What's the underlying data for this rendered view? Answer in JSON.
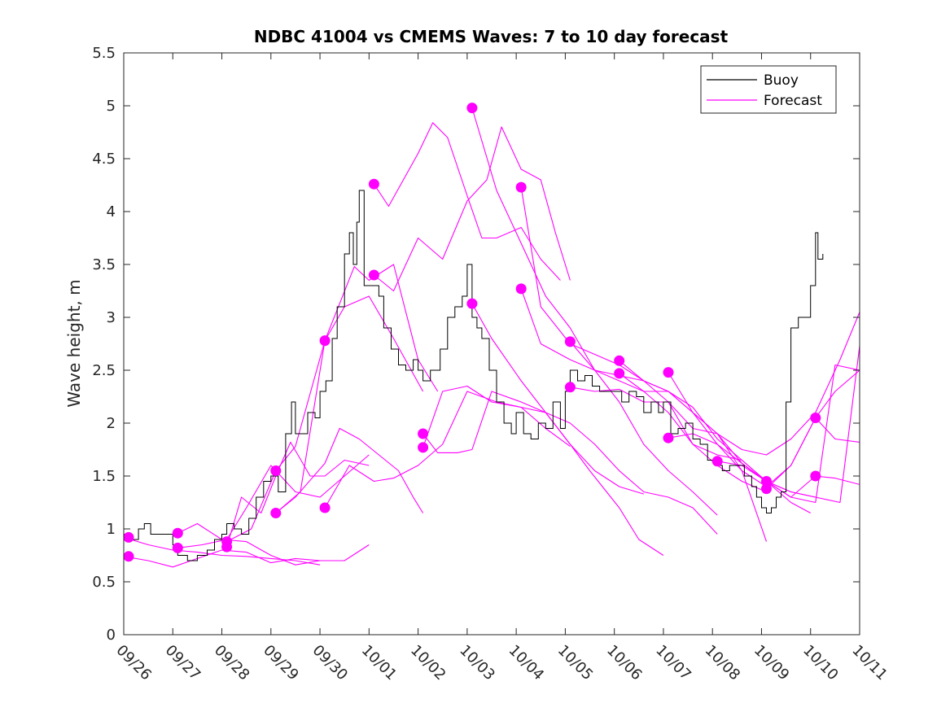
{
  "chart_data": {
    "type": "line",
    "title": "NDBC 41004 vs CMEMS Waves: 7 to 10 day forecast",
    "xlabel": "",
    "ylabel": "Wave height, m",
    "xlim": [
      0,
      15
    ],
    "ylim": [
      0,
      5.5
    ],
    "x_ticks": [
      0,
      1,
      2,
      3,
      4,
      5,
      6,
      7,
      8,
      9,
      10,
      11,
      12,
      13,
      14,
      15
    ],
    "x_tick_labels": [
      "09/26",
      "09/27",
      "09/28",
      "09/29",
      "09/30",
      "10/01",
      "10/02",
      "10/03",
      "10/04",
      "10/05",
      "10/06",
      "10/07",
      "10/08",
      "10/09",
      "10/10",
      "10/11"
    ],
    "y_ticks": [
      0,
      0.5,
      1,
      1.5,
      2,
      2.5,
      3,
      3.5,
      4,
      4.5,
      5,
      5.5
    ],
    "y_tick_labels": [
      "0",
      "0.5",
      "1",
      "1.5",
      "2",
      "2.5",
      "3",
      "3.5",
      "4",
      "4.5",
      "5",
      "5.5"
    ],
    "legend": {
      "position": "top-right",
      "entries": [
        "Buoy",
        "Forecast"
      ]
    },
    "colors": {
      "buoy": "#000000",
      "forecast": "#ff00ff",
      "axes": "#262626"
    },
    "buoy": {
      "name": "Buoy",
      "x": [
        0,
        0.15,
        0.3,
        0.42,
        0.55,
        0.75,
        0.9,
        1.0,
        1.1,
        1.3,
        1.5,
        1.7,
        1.85,
        2.0,
        2.1,
        2.25,
        2.4,
        2.55,
        2.7,
        2.85,
        3.0,
        3.15,
        3.3,
        3.42,
        3.5,
        3.6,
        3.75,
        3.9,
        4.0,
        4.12,
        4.25,
        4.35,
        4.5,
        4.6,
        4.68,
        4.75,
        4.8,
        4.9,
        5.0,
        5.1,
        5.2,
        5.3,
        5.45,
        5.6,
        5.75,
        5.9,
        6.0,
        6.1,
        6.25,
        6.45,
        6.6,
        6.75,
        6.9,
        7.0,
        7.1,
        7.2,
        7.3,
        7.45,
        7.6,
        7.75,
        7.9,
        8.0,
        8.15,
        8.3,
        8.45,
        8.6,
        8.75,
        8.9,
        9.0,
        9.1,
        9.25,
        9.4,
        9.55,
        9.7,
        9.85,
        10.0,
        10.15,
        10.3,
        10.45,
        10.6,
        10.75,
        10.9,
        11.0,
        11.15,
        11.3,
        11.45,
        11.6,
        11.75,
        11.9,
        12.05,
        12.2,
        12.35,
        12.5,
        12.65,
        12.8,
        12.9,
        13.0,
        13.1,
        13.2,
        13.3,
        13.4,
        13.5,
        13.6,
        13.75,
        13.9,
        14.0,
        14.1,
        14.15,
        14.25
      ],
      "y": [
        0.95,
        0.9,
        1.0,
        1.05,
        0.95,
        0.95,
        0.95,
        0.85,
        0.75,
        0.7,
        0.75,
        0.8,
        0.9,
        0.95,
        1.05,
        1.0,
        0.95,
        1.1,
        1.3,
        1.45,
        1.5,
        1.35,
        1.9,
        2.2,
        1.9,
        1.9,
        2.1,
        2.05,
        2.3,
        2.4,
        2.8,
        3.1,
        3.6,
        3.8,
        3.5,
        3.9,
        4.2,
        3.3,
        3.3,
        3.3,
        3.2,
        2.9,
        2.7,
        2.55,
        2.5,
        2.6,
        2.5,
        2.4,
        2.5,
        2.7,
        3.0,
        3.1,
        3.2,
        3.5,
        3.0,
        2.9,
        2.8,
        2.5,
        2.2,
        2.0,
        1.9,
        2.1,
        1.9,
        1.85,
        2.0,
        1.95,
        2.2,
        1.95,
        2.3,
        2.5,
        2.4,
        2.45,
        2.35,
        2.3,
        2.3,
        2.3,
        2.2,
        2.3,
        2.25,
        2.1,
        2.2,
        2.1,
        2.2,
        1.9,
        1.95,
        2.0,
        1.85,
        1.8,
        1.65,
        1.6,
        1.55,
        1.6,
        1.6,
        1.5,
        1.4,
        1.3,
        1.2,
        1.15,
        1.2,
        1.3,
        1.35,
        2.2,
        2.9,
        3.0,
        3.0,
        3.3,
        3.8,
        3.55,
        3.6
      ]
    },
    "forecasts": [
      {
        "name": "Forecast",
        "x": [
          0,
          0.5,
          1,
          1.5,
          2,
          2.5,
          3,
          3.5,
          4
        ],
        "y": [
          0.92,
          0.85,
          0.8,
          0.78,
          0.75,
          0.74,
          0.72,
          0.7,
          0.66
        ]
      },
      {
        "name": "Forecast",
        "x": [
          0,
          0.5,
          1,
          1.5,
          2,
          2.5,
          3,
          3.5,
          4
        ],
        "y": [
          0.74,
          0.7,
          0.64,
          0.72,
          0.8,
          0.78,
          0.68,
          0.72,
          0.7
        ]
      },
      {
        "name": "Forecast",
        "x": [
          1.1,
          1.5,
          2,
          2.5,
          3,
          3.5,
          4,
          4.5,
          5
        ],
        "y": [
          0.96,
          1.05,
          0.9,
          0.88,
          0.75,
          0.66,
          0.7,
          0.7,
          0.85
        ]
      },
      {
        "name": "Forecast",
        "x": [
          1.1,
          1.6,
          2.1,
          2.5,
          3,
          3.5,
          4,
          4.5,
          5
        ],
        "y": [
          0.82,
          0.85,
          0.9,
          1.2,
          1.6,
          1.35,
          1.3,
          1.5,
          1.7
        ]
      },
      {
        "name": "Forecast",
        "x": [
          2.1,
          2.4,
          2.8,
          3.1,
          3.4,
          3.8,
          4.1,
          4.5,
          5
        ],
        "y": [
          0.83,
          1.3,
          1.15,
          1.5,
          1.82,
          1.5,
          1.5,
          1.65,
          1.6
        ]
      },
      {
        "name": "Forecast",
        "x": [
          2.1,
          2.6,
          3.1,
          3.5,
          4.1,
          4.5,
          5,
          5.5,
          6.1
        ],
        "y": [
          0.88,
          1.0,
          1.55,
          1.78,
          2.78,
          3.1,
          3.2,
          2.8,
          2.3
        ]
      },
      {
        "name": "Forecast",
        "x": [
          3.1,
          3.5,
          4.1,
          4.4,
          4.8,
          5.2,
          5.6,
          5.9,
          6.1
        ],
        "y": [
          1.15,
          1.3,
          1.62,
          1.95,
          1.85,
          1.7,
          1.55,
          1.3,
          1.15
        ]
      },
      {
        "name": "Forecast",
        "x": [
          3.1,
          3.6,
          4.1,
          4.7,
          5,
          5.5,
          6,
          6.4
        ],
        "y": [
          1.15,
          1.35,
          2.78,
          3.48,
          3.35,
          3.5,
          2.6,
          2.3
        ]
      },
      {
        "name": "Forecast",
        "x": [
          4.1,
          4.6,
          5.1,
          5.5,
          6,
          6.5,
          7,
          7.6,
          8.1,
          8.6,
          9.1
        ],
        "y": [
          1.2,
          1.6,
          1.45,
          1.48,
          1.6,
          1.8,
          2.3,
          2.2,
          2.15,
          1.95,
          1.78
        ]
      },
      {
        "name": "Forecast",
        "x": [
          5.1,
          5.4,
          6.0,
          6.3,
          6.6,
          7.0,
          7.3,
          7.6,
          8.1,
          8.5,
          8.9
        ],
        "y": [
          4.26,
          4.05,
          4.55,
          4.84,
          4.7,
          4.15,
          3.75,
          3.75,
          3.85,
          3.55,
          3.35
        ]
      },
      {
        "name": "Forecast",
        "x": [
          5.1,
          5.5,
          6.0,
          6.5,
          7.0,
          7.4,
          7.7,
          8.1,
          8.5,
          8.8,
          9.1
        ],
        "y": [
          3.4,
          3.25,
          3.75,
          3.55,
          4.1,
          4.3,
          4.8,
          4.4,
          4.3,
          3.8,
          3.35
        ]
      },
      {
        "name": "Forecast",
        "x": [
          6.1,
          6.5,
          7.0,
          7.5,
          8.1,
          8.6,
          9.1,
          9.5,
          10.1,
          10.5,
          11.0
        ],
        "y": [
          1.77,
          2.3,
          2.35,
          2.2,
          2.15,
          2.1,
          1.8,
          1.55,
          1.2,
          0.9,
          0.75
        ]
      },
      {
        "name": "Forecast",
        "x": [
          6.1,
          6.4,
          6.8,
          7.1,
          7.5,
          8.1,
          8.6,
          9.1,
          9.6,
          10.1,
          10.6
        ],
        "y": [
          1.9,
          1.72,
          1.72,
          1.75,
          2.3,
          2.2,
          2.1,
          1.8,
          1.55,
          1.4,
          1.33
        ]
      },
      {
        "name": "Forecast",
        "x": [
          7.1,
          7.6,
          8.1,
          8.6,
          9.1,
          9.6,
          10.1,
          10.6,
          11.1,
          11.6,
          12.1
        ],
        "y": [
          4.98,
          4.2,
          3.7,
          3.2,
          2.9,
          2.5,
          2.2,
          1.8,
          1.55,
          1.35,
          1.13
        ]
      },
      {
        "name": "Forecast",
        "x": [
          7.1,
          7.5,
          8.1,
          8.6,
          9.1,
          9.6,
          10.1,
          10.6,
          11.1,
          11.6,
          12.1
        ],
        "y": [
          3.13,
          2.8,
          2.4,
          2.1,
          2.0,
          1.8,
          1.55,
          1.35,
          1.3,
          1.2,
          0.95
        ]
      },
      {
        "name": "Forecast",
        "x": [
          8.1,
          8.5,
          9.1,
          9.6,
          10.1,
          10.6,
          11.1,
          11.6,
          12.1,
          12.6,
          13.1
        ],
        "y": [
          4.23,
          3.1,
          2.75,
          2.65,
          2.55,
          2.4,
          2.2,
          1.95,
          1.9,
          1.55,
          0.88
        ]
      },
      {
        "name": "Forecast",
        "x": [
          8.1,
          8.5,
          9.1,
          9.6,
          10.1,
          10.6,
          11.1,
          11.6,
          12.1,
          12.6,
          13.1
        ],
        "y": [
          3.27,
          2.75,
          2.6,
          2.5,
          2.4,
          2.3,
          2.1,
          1.8,
          1.6,
          1.45,
          1.35
        ]
      },
      {
        "name": "Forecast",
        "x": [
          9.1,
          9.6,
          10.1,
          10.6,
          11.1,
          11.6,
          12.1,
          12.6,
          13.1,
          13.6,
          14.1
        ],
        "y": [
          2.77,
          2.5,
          2.45,
          2.4,
          2.3,
          2.15,
          1.85,
          1.65,
          1.45,
          1.35,
          1.3
        ]
      },
      {
        "name": "Forecast",
        "x": [
          9.1,
          9.6,
          10.1,
          10.6,
          11.1,
          11.6,
          12.1,
          12.6,
          13.1,
          13.6,
          14.0
        ],
        "y": [
          2.34,
          2.3,
          2.32,
          2.2,
          2.2,
          1.8,
          1.7,
          1.65,
          1.45,
          1.25,
          1.15
        ]
      },
      {
        "name": "Forecast",
        "x": [
          10.1,
          10.6,
          11.1,
          11.6,
          12.1,
          12.6,
          13.1,
          13.6,
          14.1,
          14.6,
          15.0
        ],
        "y": [
          2.59,
          2.4,
          2.3,
          2.1,
          1.9,
          1.75,
          1.7,
          1.85,
          2.1,
          2.6,
          3.05
        ]
      },
      {
        "name": "Forecast",
        "x": [
          10.1,
          10.6,
          11.1,
          11.6,
          12.1,
          12.6,
          13.1,
          13.6,
          14.1,
          14.6,
          15.0
        ],
        "y": [
          2.47,
          2.3,
          2.3,
          2.1,
          1.8,
          1.62,
          1.45,
          1.35,
          1.3,
          1.25,
          2.73
        ]
      },
      {
        "name": "Forecast",
        "x": [
          11.1,
          11.6,
          12.1,
          12.6,
          13.1,
          13.6,
          14.1,
          14.5,
          15.0
        ],
        "y": [
          2.48,
          2.1,
          1.9,
          1.62,
          1.45,
          1.3,
          1.25,
          2.55,
          2.5
        ]
      },
      {
        "name": "Forecast",
        "x": [
          11.1,
          11.6,
          12.1,
          12.6,
          13.1,
          13.6,
          14.1,
          14.5,
          15.0
        ],
        "y": [
          1.86,
          1.9,
          1.8,
          1.55,
          1.4,
          1.6,
          2.05,
          1.85,
          1.82
        ]
      },
      {
        "name": "Forecast",
        "x": [
          12.1,
          12.6,
          13.1,
          13.6,
          14.1,
          14.5,
          15.0
        ],
        "y": [
          1.64,
          1.6,
          1.45,
          1.3,
          1.5,
          1.48,
          1.42
        ]
      },
      {
        "name": "Forecast",
        "x": [
          13.1,
          13.6,
          14.1,
          14.5,
          15.0
        ],
        "y": [
          1.38,
          1.6,
          2.05,
          2.3,
          2.5
        ]
      }
    ],
    "markers": {
      "x": [
        0.1,
        0.1,
        1.1,
        1.1,
        2.1,
        2.1,
        3.1,
        3.1,
        4.1,
        4.1,
        5.1,
        5.1,
        6.1,
        6.1,
        7.1,
        7.1,
        8.1,
        8.1,
        9.1,
        9.1,
        10.1,
        10.1,
        11.1,
        11.1,
        12.1,
        13.1,
        13.1,
        14.1,
        14.1
      ],
      "y": [
        0.92,
        0.74,
        0.96,
        0.82,
        0.88,
        0.83,
        1.55,
        1.15,
        2.78,
        1.2,
        4.26,
        3.4,
        1.9,
        1.77,
        4.98,
        3.13,
        4.23,
        3.27,
        2.77,
        2.34,
        2.59,
        2.47,
        2.48,
        1.86,
        1.64,
        1.45,
        1.38,
        2.05,
        1.5
      ]
    }
  }
}
